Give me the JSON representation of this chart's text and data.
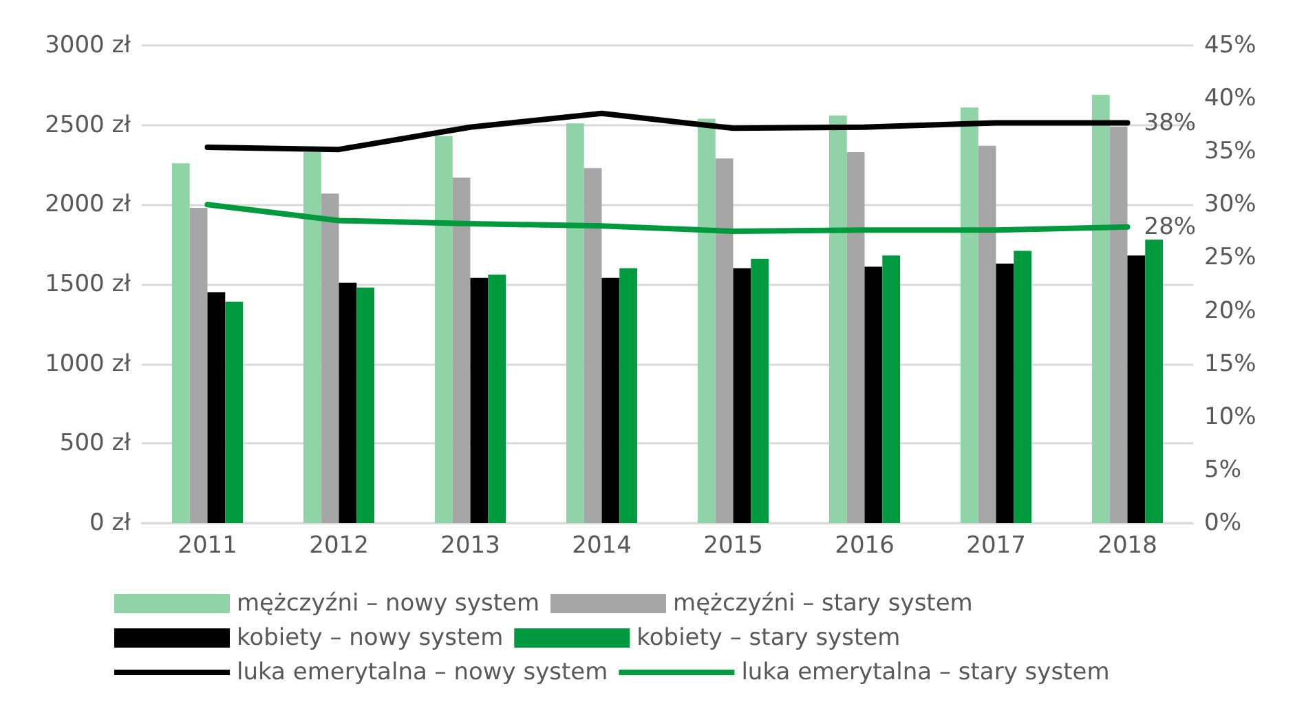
{
  "chart_data": {
    "type": "bar",
    "categories": [
      "2011",
      "2012",
      "2013",
      "2014",
      "2015",
      "2016",
      "2017",
      "2018"
    ],
    "series": [
      {
        "name": "mężczyźni – nowy system",
        "color": "#8fd3a6",
        "values": [
          2260,
          2330,
          2430,
          2510,
          2540,
          2560,
          2610,
          2690
        ]
      },
      {
        "name": "mężczyźni – stary system",
        "color": "#a6a6a6",
        "values": [
          1980,
          2070,
          2170,
          2230,
          2290,
          2330,
          2370,
          2490
        ]
      },
      {
        "name": "kobiety – nowy system",
        "color": "#000000",
        "values": [
          1450,
          1510,
          1540,
          1540,
          1600,
          1610,
          1630,
          1680
        ]
      },
      {
        "name": "kobiety – stary system",
        "color": "#009a3e",
        "values": [
          1390,
          1480,
          1560,
          1600,
          1660,
          1680,
          1710,
          1780
        ]
      },
      {
        "name": "luka emerytalna – nowy system",
        "type": "line",
        "axis": "y2",
        "color": "#000000",
        "values": [
          35.4,
          35.2,
          37.3,
          38.6,
          37.2,
          37.3,
          37.7,
          37.7
        ],
        "value_labels": [
          null,
          null,
          null,
          null,
          null,
          null,
          null,
          "38%"
        ]
      },
      {
        "name": "luka emerytalna – stary system",
        "type": "line",
        "axis": "y2",
        "color": "#009a3e",
        "values": [
          30.0,
          28.5,
          28.2,
          28.0,
          27.5,
          27.6,
          27.6,
          27.9
        ],
        "value_labels": [
          null,
          null,
          null,
          null,
          null,
          null,
          null,
          "28%"
        ]
      }
    ],
    "ylim": [
      0,
      3000
    ],
    "yticks": [
      {
        "value": 0,
        "label": "0 zł"
      },
      {
        "value": 500,
        "label": "500 zł"
      },
      {
        "value": 1000,
        "label": "1000 zł"
      },
      {
        "value": 1500,
        "label": "1500 zł"
      },
      {
        "value": 2000,
        "label": "2000 zł"
      },
      {
        "value": 2500,
        "label": "2500 zł"
      },
      {
        "value": 3000,
        "label": "3000 zł"
      }
    ],
    "y2lim": [
      0,
      45
    ],
    "y2ticks": [
      {
        "value": 0,
        "label": "0%"
      },
      {
        "value": 5,
        "label": "5%"
      },
      {
        "value": 10,
        "label": "10%"
      },
      {
        "value": 15,
        "label": "15%"
      },
      {
        "value": 20,
        "label": "20%"
      },
      {
        "value": 25,
        "label": "25%"
      },
      {
        "value": 30,
        "label": "30%"
      },
      {
        "value": 35,
        "label": "35%"
      },
      {
        "value": 40,
        "label": "40%"
      },
      {
        "value": 45,
        "label": "45%"
      }
    ],
    "grid": "y",
    "legend": "bottom",
    "marker": "none",
    "line_style": "solid"
  }
}
